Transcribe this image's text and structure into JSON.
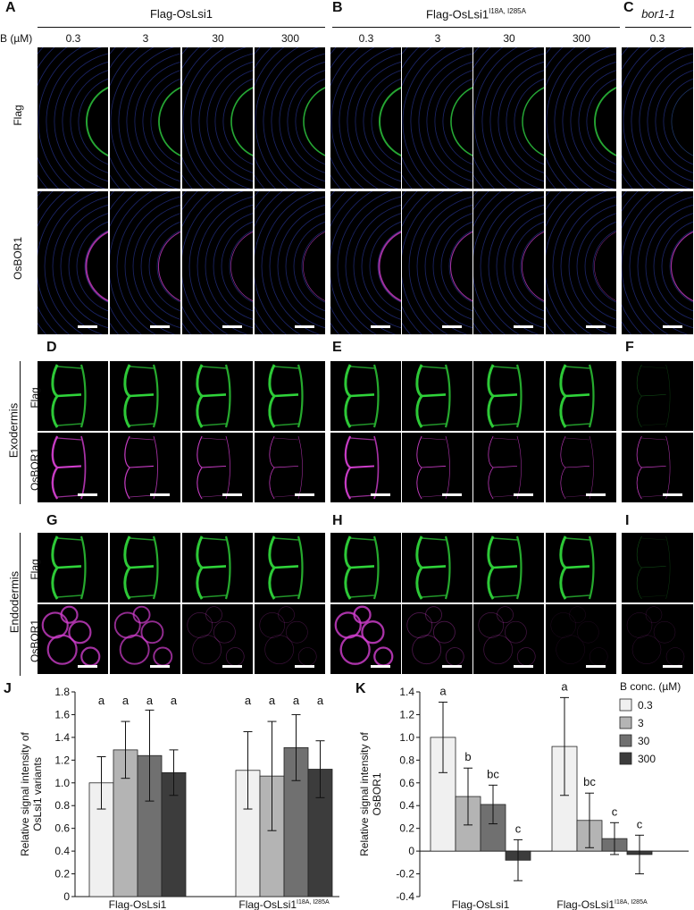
{
  "header": {
    "group1": "Flag-OsLsi1",
    "group2_base": "Flag-OsLsi1",
    "group2_sup": "I18A, I285A",
    "group3": "bor1-1",
    "b_label": "B (µM)",
    "conc": [
      "0.3",
      "3",
      "30",
      "300",
      "0.3",
      "3",
      "30",
      "300",
      "0.3"
    ]
  },
  "panels": {
    "A": "A",
    "B": "B",
    "C": "C",
    "D": "D",
    "E": "E",
    "F": "F",
    "G": "G",
    "H": "H",
    "I": "I",
    "J": "J",
    "K": "K"
  },
  "rows": {
    "flag": "Flag",
    "osbor1": "OsBOR1",
    "exodermis": "Exodermis",
    "endodermis": "Endodermis"
  },
  "colors": {
    "green": "#2fd43a",
    "magenta": "#d23fcf",
    "blue": "#3a4fd8",
    "bar_03": "#f0f0f0",
    "bar_3": "#b4b4b4",
    "bar_30": "#707070",
    "bar_300": "#3c3c3c"
  },
  "chart_data": [
    {
      "type": "bar",
      "panel": "J",
      "ylabel_line1": "Relative signal intensity of",
      "ylabel_line2": "OsLsi1 variants",
      "ylim": [
        0,
        1.8
      ],
      "yticks": [
        "0",
        "0.2",
        "0.4",
        "0.6",
        "0.8",
        "1.0",
        "1.2",
        "1.4",
        "1.6",
        "1.8"
      ],
      "groups": [
        "Flag-OsLsi1",
        "Flag-OsLsi1"
      ],
      "group_sups": [
        "",
        "I18A, I285A"
      ],
      "series": [
        {
          "name": "0.3",
          "values": [
            1.0,
            1.11
          ],
          "errors": [
            0.23,
            0.34
          ],
          "letters": [
            "a",
            "a"
          ]
        },
        {
          "name": "3",
          "values": [
            1.29,
            1.06
          ],
          "errors": [
            0.25,
            0.48
          ],
          "letters": [
            "a",
            "a"
          ]
        },
        {
          "name": "30",
          "values": [
            1.24,
            1.31
          ],
          "errors": [
            0.4,
            0.29
          ],
          "letters": [
            "a",
            "a"
          ]
        },
        {
          "name": "300",
          "values": [
            1.09,
            1.12
          ],
          "errors": [
            0.2,
            0.25
          ],
          "letters": [
            "a",
            "a"
          ]
        }
      ]
    },
    {
      "type": "bar",
      "panel": "K",
      "ylabel_line1": "Relative signal intensity of",
      "ylabel_line2": "OsBOR1",
      "ylim": [
        -0.4,
        1.4
      ],
      "yticks": [
        "-0.4",
        "-0.2",
        "0",
        "0.2",
        "0.4",
        "0.6",
        "0.8",
        "1.0",
        "1.2",
        "1.4"
      ],
      "groups": [
        "Flag-OsLsi1",
        "Flag-OsLsi1"
      ],
      "group_sups": [
        "",
        "I18A, I285A"
      ],
      "legend_title": "B conc. (µM)",
      "legend_position": "top-right",
      "series": [
        {
          "name": "0.3",
          "values": [
            1.0,
            0.92
          ],
          "errors": [
            0.31,
            0.43
          ],
          "letters": [
            "a",
            "a"
          ]
        },
        {
          "name": "3",
          "values": [
            0.48,
            0.27
          ],
          "errors": [
            0.25,
            0.24
          ],
          "letters": [
            "b",
            "bc"
          ]
        },
        {
          "name": "30",
          "values": [
            0.41,
            0.11
          ],
          "errors": [
            0.17,
            0.14
          ],
          "letters": [
            "bc",
            "c"
          ]
        },
        {
          "name": "300",
          "values": [
            -0.08,
            -0.03
          ],
          "errors": [
            0.18,
            0.17
          ],
          "letters": [
            "c",
            "c"
          ]
        }
      ]
    }
  ]
}
